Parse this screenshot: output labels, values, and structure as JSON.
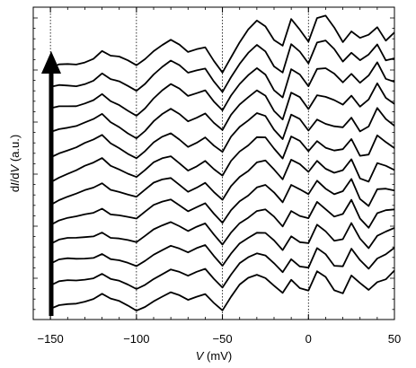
{
  "chart_data": {
    "type": "line",
    "xlabel": {
      "var": "V",
      "unit": " (mV)"
    },
    "ylabel": {
      "part1": "d",
      "var1": "I",
      "part2": "/d",
      "var2": "V",
      "unit": " (a.u.)"
    },
    "xlim": [
      -160,
      50
    ],
    "x_ticks": [
      -150,
      -100,
      -50,
      0,
      50
    ],
    "x_tick_labels": [
      "−150",
      "−100",
      "−50",
      "0",
      "50"
    ],
    "reference_lines_x": [
      -150,
      -100,
      -50,
      0
    ],
    "y_ticks_unlabeled": true,
    "offset_curves": 12,
    "stack_direction": "up",
    "series_x": [
      -150,
      -145,
      -140,
      -135,
      -130,
      -125,
      -120,
      -115,
      -110,
      -105,
      -100,
      -95,
      -90,
      -85,
      -80,
      -75,
      -70,
      -65,
      -60,
      -55,
      -50,
      -45,
      -40,
      -35,
      -30,
      -25,
      -20,
      -15,
      -10,
      -5,
      0,
      5,
      10,
      15,
      20,
      25,
      30,
      35,
      40,
      45,
      50
    ],
    "series_base_shape": [
      0.0,
      0.05,
      0.08,
      0.1,
      0.14,
      0.18,
      0.26,
      0.16,
      0.12,
      0.06,
      0.0,
      0.1,
      0.22,
      0.3,
      0.36,
      0.28,
      0.18,
      0.24,
      0.3,
      0.14,
      0.0,
      0.22,
      0.4,
      0.52,
      0.62,
      0.58,
      0.42,
      0.3,
      0.62,
      0.5,
      0.38,
      0.66,
      0.6,
      0.46,
      0.4,
      0.62,
      0.44,
      0.4,
      0.58,
      0.5,
      0.55
    ]
  }
}
